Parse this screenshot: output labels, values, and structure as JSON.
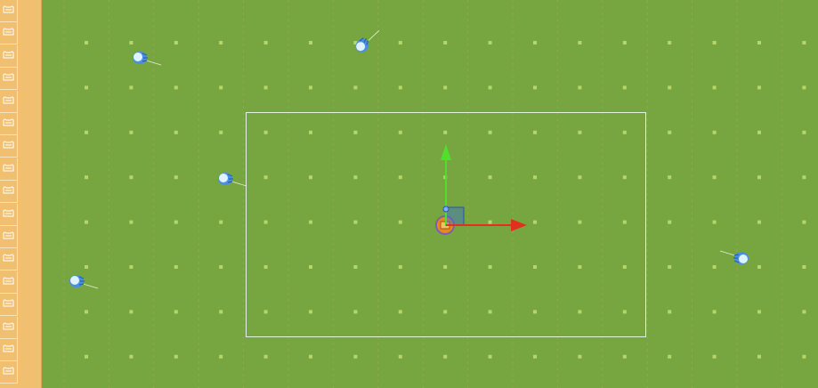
{
  "scene": {
    "background_color": "#77a640",
    "grid_dot_color": "#b5d66b",
    "grid_line_color": "#c8a858",
    "selection_box_color": "#e8f0e0",
    "x_axis_color": "#e0301e",
    "y_axis_color": "#4ee02a",
    "player_color": "#e88a1a"
  },
  "left_strip": {
    "tile_icon": "tile-icon",
    "tile_count": 17
  },
  "jellyfish_icon": "jellyfish-icon",
  "player_icon": "player-icon",
  "gizmo": {
    "x_arrow_icon": "x-arrow-icon",
    "y_arrow_icon": "y-arrow-icon",
    "plane_handle_icon": "square-handle-icon"
  }
}
